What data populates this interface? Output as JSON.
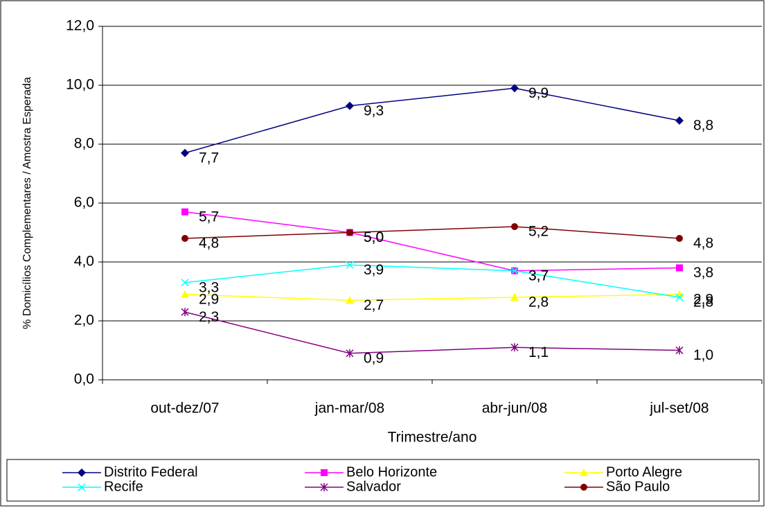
{
  "chart_data": {
    "type": "line",
    "y_axis_label": "% Domicílios Complementares / Amostra Esperada",
    "x_axis_label": "Trimestre/ano",
    "categories": [
      "out-dez/07",
      "jan-mar/08",
      "abr-jun/08",
      "jul-set/08"
    ],
    "ylim": [
      0,
      12
    ],
    "yticks": [
      {
        "value": 0,
        "label": "0,0"
      },
      {
        "value": 2,
        "label": "2,0"
      },
      {
        "value": 4,
        "label": "4,0"
      },
      {
        "value": 6,
        "label": "6,0"
      },
      {
        "value": 8,
        "label": "8,0"
      },
      {
        "value": 10,
        "label": "10,0"
      },
      {
        "value": 12,
        "label": "12,0"
      }
    ],
    "grid": true,
    "legend": "bottom",
    "series": [
      {
        "name": "Distrito Federal",
        "color": "#000080",
        "marker": "diamond",
        "values": [
          7.7,
          9.3,
          9.9,
          8.8
        ],
        "value_labels": [
          "7,7",
          "9,3",
          "9,9",
          "8,8"
        ]
      },
      {
        "name": "Belo Horizonte",
        "color": "#ff00ff",
        "marker": "square",
        "values": [
          5.7,
          5.0,
          3.7,
          3.8
        ],
        "value_labels": [
          "5,7",
          "5,0",
          "3,7",
          "3,8"
        ]
      },
      {
        "name": "Porto Alegre",
        "color": "#ffff00",
        "marker": "triangle",
        "values": [
          2.9,
          2.7,
          2.8,
          2.9
        ],
        "value_labels": [
          "2,9",
          "2,7",
          "2,8",
          "2,9"
        ]
      },
      {
        "name": "Recife",
        "color": "#00ffff",
        "marker": "x",
        "values": [
          3.3,
          3.9,
          3.7,
          2.8
        ],
        "value_labels": [
          "3,3",
          "3,9",
          "3,7",
          "2,8"
        ]
      },
      {
        "name": "Salvador",
        "color": "#800080",
        "marker": "star",
        "values": [
          2.3,
          0.9,
          1.1,
          1.0
        ],
        "value_labels": [
          "2,3",
          "0,9",
          "1,1",
          "1,0"
        ]
      },
      {
        "name": "São Paulo",
        "color": "#800000",
        "marker": "circle",
        "values": [
          4.8,
          5.0,
          5.2,
          4.8
        ],
        "value_labels": [
          "4,8",
          "5,0",
          "5,2",
          "4,8"
        ]
      }
    ]
  }
}
